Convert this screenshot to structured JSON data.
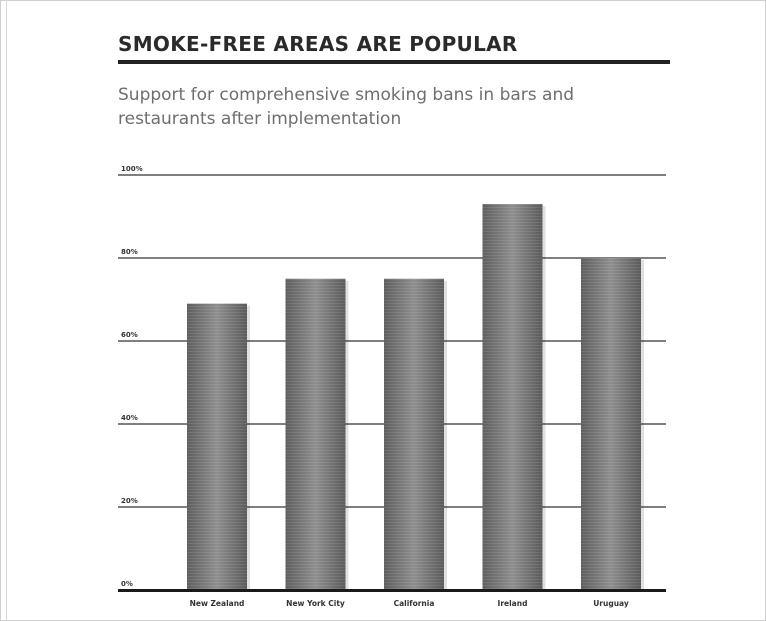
{
  "chart_data": {
    "type": "bar",
    "title": "SMOKE-FREE AREAS ARE POPULAR",
    "subtitle": "Support for comprehensive smoking bans in bars and restaurants after implementation",
    "categories": [
      "New Zealand",
      "New York City",
      "California",
      "Ireland",
      "Uruguay"
    ],
    "values": [
      69,
      75,
      75,
      93,
      80
    ],
    "y_ticks": [
      "0%",
      "20%",
      "40%",
      "60%",
      "80%",
      "100%"
    ],
    "ylim": [
      0,
      100
    ],
    "xlabel": "",
    "ylabel": "",
    "grid": true,
    "colors": {
      "bar": "#7a7a7a",
      "grid": "#555555",
      "axis": "#1a1a1a"
    }
  }
}
